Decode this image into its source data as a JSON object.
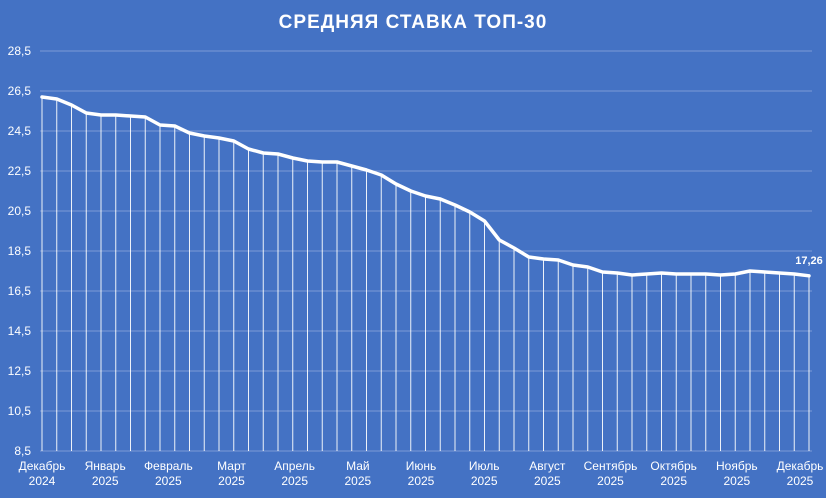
{
  "chart_data": {
    "type": "line",
    "title": "СРЕДНЯЯ СТАВКА ТОП-30",
    "ylim": [
      8.5,
      28.5
    ],
    "y_ticks": [
      "28,5",
      "26,5",
      "24,5",
      "22,5",
      "20,5",
      "18,5",
      "16,5",
      "14,5",
      "12,5",
      "10,5",
      "8,5"
    ],
    "x_month_labels": [
      {
        "month": "Декабрь",
        "year": "2024"
      },
      {
        "month": "Январь",
        "year": "2025"
      },
      {
        "month": "Февраль",
        "year": "2025"
      },
      {
        "month": "Март",
        "year": "2025"
      },
      {
        "month": "Апрель",
        "year": "2025"
      },
      {
        "month": "Май",
        "year": "2025"
      },
      {
        "month": "Июнь",
        "year": "2025"
      },
      {
        "month": "Июль",
        "year": "2025"
      },
      {
        "month": "Август",
        "year": "2025"
      },
      {
        "month": "Сентябрь",
        "year": "2025"
      },
      {
        "month": "Октябрь",
        "year": "2025"
      },
      {
        "month": "Ноябрь",
        "year": "2025"
      },
      {
        "month": "Декабрь",
        "year": "2025"
      }
    ],
    "grid": true,
    "drop_lines": true,
    "series": [
      {
        "values": [
          26.2,
          26.1,
          25.8,
          25.4,
          25.3,
          25.3,
          25.25,
          25.2,
          24.8,
          24.75,
          24.4,
          24.25,
          24.15,
          24.0,
          23.6,
          23.4,
          23.35,
          23.15,
          23.0,
          22.95,
          22.95,
          22.75,
          22.55,
          22.3,
          21.85,
          21.5,
          21.25,
          21.1,
          20.8,
          20.45,
          20.0,
          19.05,
          18.65,
          18.2,
          18.1,
          18.05,
          17.8,
          17.7,
          17.45,
          17.4,
          17.3,
          17.35,
          17.4,
          17.35,
          17.35,
          17.35,
          17.3,
          17.35,
          17.5,
          17.45,
          17.4,
          17.35,
          17.26
        ]
      }
    ],
    "last_value_label": "17,26"
  }
}
